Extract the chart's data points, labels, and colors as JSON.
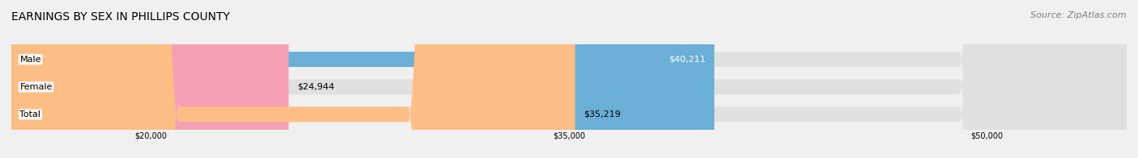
{
  "title": "EARNINGS BY SEX IN PHILLIPS COUNTY",
  "source": "Source: ZipAtlas.com",
  "categories": [
    "Male",
    "Female",
    "Total"
  ],
  "values": [
    40211,
    24944,
    35219
  ],
  "bar_colors": [
    "#6baed6",
    "#f4a0b5",
    "#fdbe85"
  ],
  "label_inside": [
    true,
    false,
    false
  ],
  "xlim": [
    15000,
    55000
  ],
  "xticks": [
    20000,
    35000,
    50000
  ],
  "xtick_labels": [
    "$20,000",
    "$35,000",
    "$50,000"
  ],
  "bar_height": 0.55,
  "background_color": "#f0f0f0",
  "bar_bg_color": "#e0e0e0",
  "title_fontsize": 10,
  "source_fontsize": 8,
  "label_fontsize": 8,
  "category_fontsize": 8
}
